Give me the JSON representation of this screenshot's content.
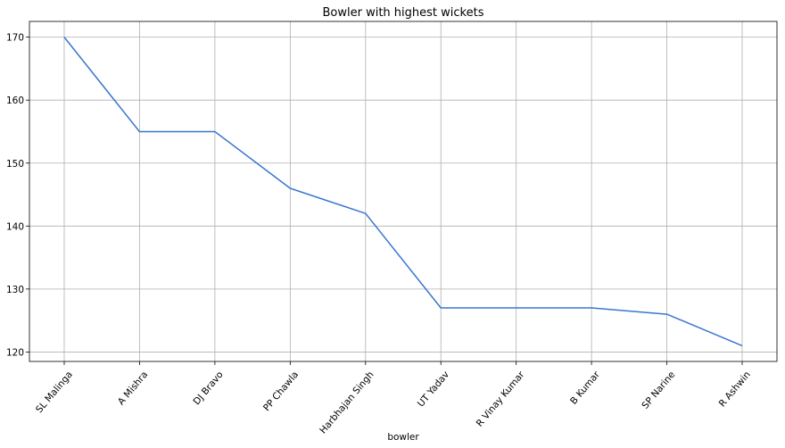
{
  "chart_data": {
    "type": "line",
    "title": "Bowler with highest wickets",
    "xlabel": "bowler",
    "ylabel": "",
    "categories": [
      "SL Malinga",
      "A Mishra",
      "DJ Bravo",
      "PP Chawla",
      "Harbhajan Singh",
      "UT Yadav",
      "R Vinay Kumar",
      "B Kumar",
      "SP Narine",
      "R Ashwin"
    ],
    "values": [
      170,
      155,
      155,
      146,
      142,
      127,
      127,
      127,
      126,
      121
    ],
    "yticks": [
      120,
      130,
      140,
      150,
      160,
      170
    ],
    "ylim": [
      118.5,
      172.5
    ],
    "grid": true,
    "line_color": "#3a76d1"
  }
}
